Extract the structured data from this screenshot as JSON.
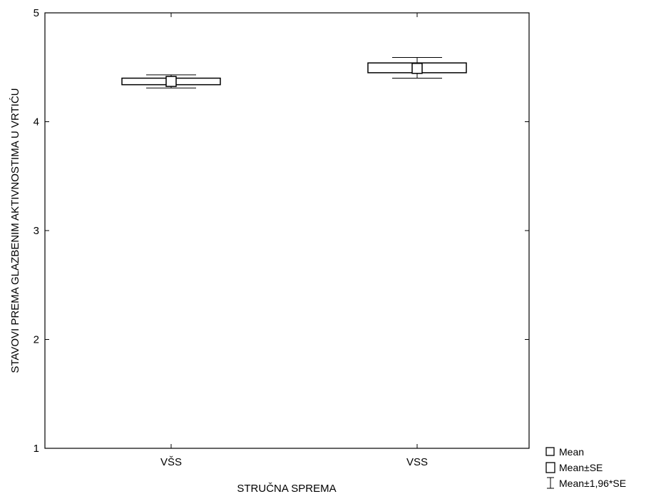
{
  "chart_data": {
    "type": "box",
    "xlabel": "STRUČNA SPREMA",
    "ylabel": "STAVOVI PREMA GLAZBENIM AKTIVNOSTIMA U VRTIĆU",
    "ylim": [
      1,
      5
    ],
    "yticks": [
      "1",
      "2",
      "3",
      "4",
      "5"
    ],
    "grid": false,
    "legend_position": "bottom-right",
    "categories": [
      "VŠS",
      "VSS"
    ],
    "series": [
      {
        "category": "VŠS",
        "mean": 4.37,
        "se_low": 4.34,
        "se_high": 4.4,
        "ci_low": 4.31,
        "ci_high": 4.43
      },
      {
        "category": "VSS",
        "mean": 4.49,
        "se_low": 4.45,
        "se_high": 4.54,
        "ci_low": 4.4,
        "ci_high": 4.59
      }
    ],
    "legend": [
      {
        "symbol": "mean-square",
        "label": "Mean"
      },
      {
        "symbol": "se-box",
        "label": "Mean±SE"
      },
      {
        "symbol": "ci-whisker",
        "label": "Mean±1,96*SE"
      }
    ]
  }
}
